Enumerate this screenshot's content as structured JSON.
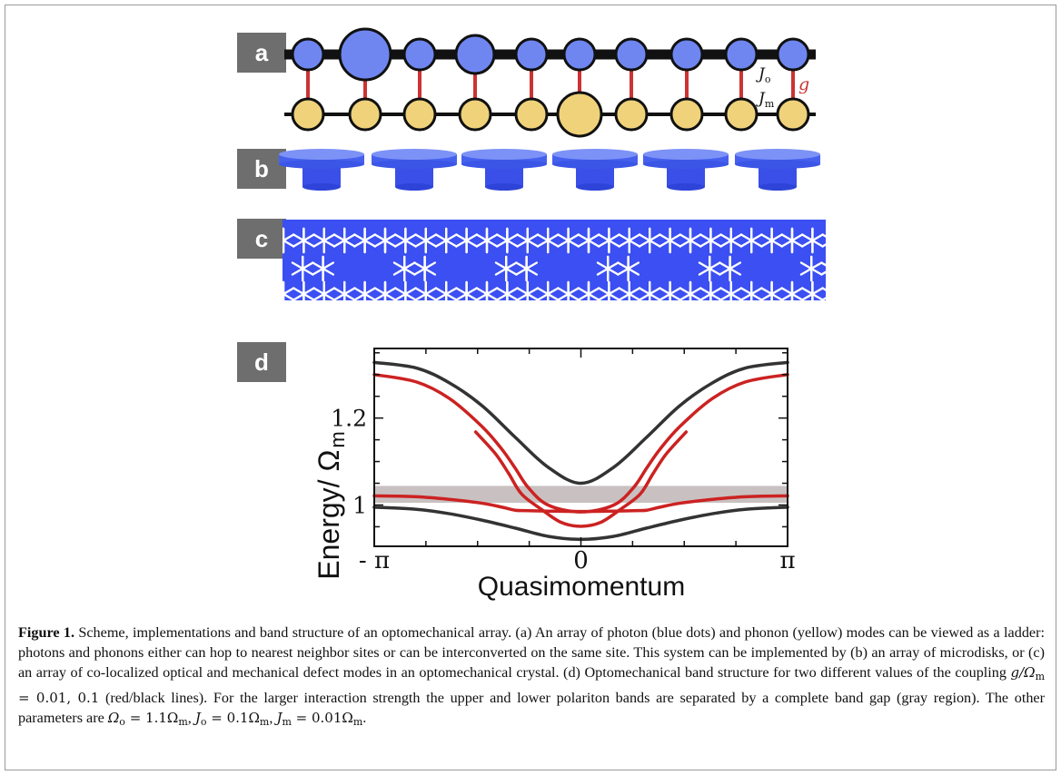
{
  "figure": {
    "panels": [
      "a",
      "b",
      "c",
      "d"
    ],
    "ladder": {
      "label_Jo": "J",
      "label_Jo_sub": "o",
      "label_Jm": "J",
      "label_Jm_sub": "m",
      "label_g": "g",
      "photon_color": "#6f86f0",
      "phonon_color": "#efd27a",
      "link_color": "#cc3333"
    },
    "disk_color": "#5b75f0",
    "crystal_color": "#3b4ff2"
  },
  "chart_data": {
    "type": "line",
    "xlabel": "Quasimomentum",
    "ylabel": "Energy/ Ω",
    "ylabel_sub": "m",
    "x_ticks": [
      "- π",
      "0",
      "π"
    ],
    "y_ticks": [
      "1",
      "1.2"
    ],
    "xlim": [
      -3.1416,
      3.1416
    ],
    "ylim": [
      0.905,
      1.36
    ],
    "gap_band": [
      1.005,
      1.044
    ],
    "series": [
      {
        "color": "#333333",
        "x": [
          -3.1416,
          -2.5,
          -2.0,
          -1.5,
          -1.0,
          -0.5,
          0,
          0.5,
          1.0,
          1.5,
          2.0,
          2.5,
          3.1416
        ],
        "values": [
          1.328,
          1.315,
          1.281,
          1.228,
          1.156,
          1.087,
          1.05,
          1.087,
          1.156,
          1.228,
          1.281,
          1.315,
          1.328
        ]
      },
      {
        "color": "#333333",
        "x": [
          -3.1416,
          -2.5,
          -2.0,
          -1.5,
          -1.0,
          -0.5,
          0,
          0.5,
          1.0,
          1.5,
          2.0,
          2.5,
          3.1416
        ],
        "values": [
          0.995,
          0.99,
          0.98,
          0.965,
          0.947,
          0.928,
          0.921,
          0.928,
          0.947,
          0.965,
          0.98,
          0.99,
          0.995
        ]
      },
      {
        "color": "#cc2222",
        "x": [
          -3.1416,
          -2.5,
          -2.0,
          -1.5,
          -1.2,
          -1.0,
          -0.8,
          -0.5,
          0,
          0.5,
          0.8,
          1.0,
          1.2,
          1.5,
          2.0,
          2.5,
          3.1416
        ],
        "values": [
          1.3,
          1.283,
          1.245,
          1.18,
          1.128,
          1.085,
          1.04,
          1.0,
          0.984,
          1.0,
          1.04,
          1.085,
          1.128,
          1.18,
          1.245,
          1.283,
          1.3
        ]
      },
      {
        "color": "#cc2222",
        "x": [
          -3.1416,
          -2.5,
          -2.0,
          -1.5,
          -1.2,
          -1.0,
          -0.8,
          -0.5,
          0,
          0.5,
          0.8,
          1.0,
          1.2,
          1.5,
          2.0,
          2.5,
          3.1416
        ],
        "values": [
          1.021,
          1.019,
          1.013,
          1.004,
          0.995,
          0.988,
          0.987,
          0.986,
          0.985,
          0.986,
          0.987,
          0.988,
          0.995,
          1.004,
          1.013,
          1.019,
          1.021
        ]
      },
      {
        "color": "#cc2222",
        "x": [
          -1.6,
          -1.3,
          -1.1,
          -0.9,
          -0.6,
          -0.3,
          0,
          0.3,
          0.6,
          0.9,
          1.1,
          1.3,
          1.6
        ],
        "values": [
          1.168,
          1.118,
          1.073,
          1.025,
          0.99,
          0.96,
          0.951,
          0.96,
          0.99,
          1.025,
          1.073,
          1.118,
          1.168
        ]
      }
    ]
  },
  "caption": {
    "figure_label": "Figure 1.",
    "text_1": " Scheme, implementations and band structure of an optomechanical array. (a) An array of photon (blue dots) and phonon (yellow) modes can be viewed as a ladder: photons and phonons either can hop to nearest neighbor sites or can be interconverted on the same site. This system can be implemented by (b) an array of microdisks, or (c) an array of co-localized optical and mechanical defect modes in an optomechanical crystal. (d) Optomechanical band structure for two different values of the coupling ",
    "math_1": "g/Ω",
    "math_1_sub": "m",
    "math_1_tail": " = 0.01, 0.1",
    "text_2": " (red/black lines). For the larger interaction strength the upper and lower polariton bands are separated by a complete band gap (gray region). The other parameters are ",
    "math_2": "Ω",
    "math_2_sub": "o",
    "math_2_tail": " = 1.1Ω",
    "math_2_sub2": "m",
    "sep_1": ", ",
    "math_3": "J",
    "math_3_sub": "o",
    "math_3_tail": " = 0.1Ω",
    "math_3_sub2": "m",
    "sep_2": ", ",
    "math_4": "J",
    "math_4_sub": "m",
    "math_4_tail": " = 0.01Ω",
    "math_4_sub2": "m",
    "end": "."
  }
}
